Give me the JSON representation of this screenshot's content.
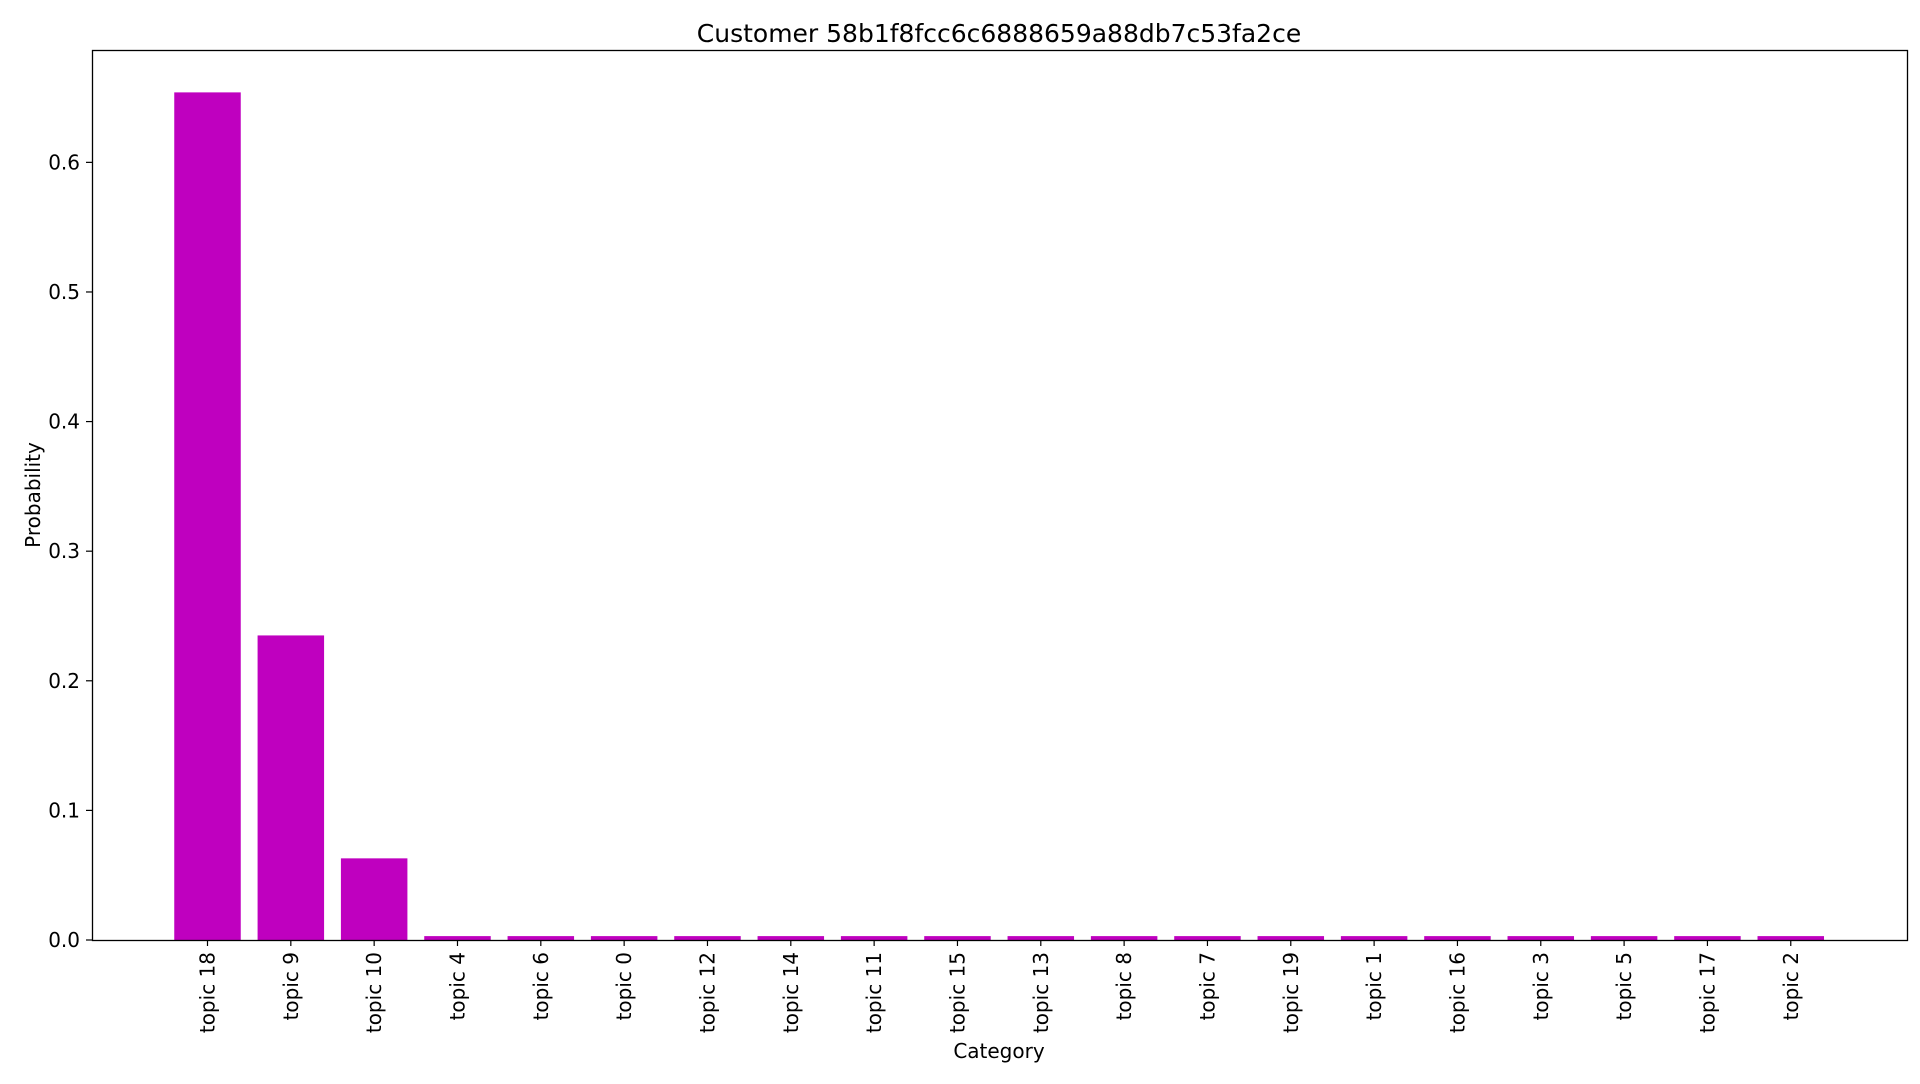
{
  "chart_data": {
    "type": "bar",
    "title": "Customer 58b1f8fcc6c6888659a88db7c53fa2ce",
    "xlabel": "Category",
    "ylabel": "Probability",
    "categories": [
      "topic 18",
      "topic 9",
      "topic 10",
      "topic 4",
      "topic 6",
      "topic 0",
      "topic 12",
      "topic 14",
      "topic 11",
      "topic 15",
      "topic 13",
      "topic 8",
      "topic 7",
      "topic 19",
      "topic 1",
      "topic 16",
      "topic 3",
      "topic 5",
      "topic 17",
      "topic 2"
    ],
    "values": [
      0.654,
      0.235,
      0.063,
      0.003,
      0.003,
      0.003,
      0.003,
      0.003,
      0.003,
      0.003,
      0.003,
      0.003,
      0.003,
      0.003,
      0.003,
      0.003,
      0.003,
      0.003,
      0.003,
      0.003
    ],
    "ylim": [
      0,
      0.6867
    ],
    "yticks": [
      0.0,
      0.1,
      0.2,
      0.3,
      0.4,
      0.5,
      0.6
    ],
    "ytick_labels": [
      "0.0",
      "0.1",
      "0.2",
      "0.3",
      "0.4",
      "0.5",
      "0.6"
    ],
    "bar_color": "#bf00bf",
    "grid": false,
    "legend": false
  }
}
